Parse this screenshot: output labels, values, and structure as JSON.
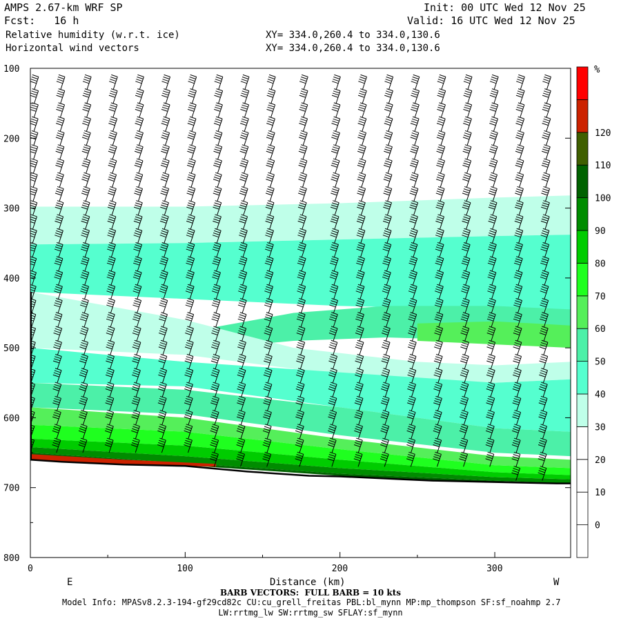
{
  "header": {
    "model": "AMPS 2.67-km WRF SP",
    "init": "Init: 00 UTC Wed 12 Nov 25",
    "fcst": "Fcst:   16 h",
    "valid": "Valid: 16 UTC Wed 12 Nov 25",
    "field1": "Relative humidity (w.r.t. ice)",
    "field2": "Horizontal wind vectors",
    "xy1": "XY= 334.0,260.4 to 334.0,130.6",
    "xy2": "XY= 334.0,260.4 to 334.0,130.6"
  },
  "footer": {
    "barb": "BARB VECTORS:  FULL BARB = 10 kts",
    "model_info": "Model Info: MPASv8.2.3-194-gf29cd82c CU:cu_grell_freitas PBL:bl_mynn MP:mp_thompson SF:sf_noahmp 2.7",
    "model_info2": "LW:rrtmg_lw SW:rrtmg_sw SFLAY:sf_mynn"
  },
  "chart_data": {
    "type": "heatmap",
    "xlabel": "Distance (km)",
    "ylabel": "",
    "xlim": [
      0,
      349
    ],
    "ylim": [
      800,
      100
    ],
    "x_ticks": [
      0,
      100,
      200,
      300
    ],
    "y_ticks": [
      100,
      200,
      300,
      400,
      500,
      600,
      700,
      800
    ],
    "x_end_labels": {
      "left": "E",
      "right": "W"
    },
    "colorbar": {
      "unit": "%",
      "tick_labels": [
        120,
        110,
        100,
        90,
        80,
        70,
        60,
        50,
        40,
        30,
        20,
        10,
        0
      ],
      "levels": [
        -10,
        0,
        10,
        20,
        30,
        40,
        50,
        60,
        70,
        80,
        90,
        100,
        110,
        120,
        130
      ],
      "colors": [
        "#ffffff",
        "#ffffff",
        "#ffffff",
        "#ffffff",
        "#bfffe9",
        "#55ffcf",
        "#4cf0a8",
        "#55ef5a",
        "#1fff1f",
        "#00cc00",
        "#008c00",
        "#006200",
        "#3f5f00",
        "#cc2200",
        "#ff0000"
      ]
    },
    "layers": [
      {
        "rh": 35,
        "color": "#bfffe9",
        "x": [
          0,
          100,
          200,
          300,
          349
        ],
        "top": [
          298,
          298,
          293,
          285,
          282
        ],
        "bottom": [
          352,
          350,
          345,
          340,
          338
        ]
      },
      {
        "rh": 45,
        "color": "#55ffcf",
        "x": [
          0,
          100,
          200,
          300,
          349
        ],
        "top": [
          352,
          350,
          345,
          340,
          338
        ],
        "bottom": [
          420,
          430,
          440,
          445,
          450
        ]
      },
      {
        "rh": 55,
        "color": "#4cf0a8",
        "x": [
          120,
          170,
          230,
          300,
          349
        ],
        "top": [
          470,
          450,
          440,
          440,
          445
        ],
        "bottom": [
          500,
          490,
          485,
          490,
          495
        ]
      },
      {
        "rh": 65,
        "color": "#55ef5a",
        "x": [
          250,
          300,
          349
        ],
        "top": [
          465,
          462,
          468
        ],
        "bottom": [
          490,
          495,
          500
        ]
      },
      {
        "rh": 35,
        "color": "#bfffe9",
        "x": [
          0,
          100,
          170,
          250,
          300,
          349
        ],
        "top": [
          420,
          460,
          500,
          520,
          525,
          520
        ],
        "bottom": [
          500,
          510,
          530,
          545,
          550,
          545
        ]
      },
      {
        "rh": 35,
        "color": "#bfffe9",
        "x": [
          170,
          220,
          280,
          349
        ],
        "top": [
          525,
          545,
          555,
          560
        ],
        "bottom": [
          535,
          560,
          580,
          590
        ]
      },
      {
        "rh": 45,
        "color": "#55ffcf",
        "x": [
          0,
          100,
          200,
          300,
          349
        ],
        "top": [
          500,
          520,
          535,
          550,
          545
        ],
        "bottom": [
          550,
          555,
          585,
          615,
          620
        ]
      },
      {
        "rh": 55,
        "color": "#4cf0a8",
        "x": [
          0,
          100,
          200,
          300,
          349
        ],
        "top": [
          550,
          560,
          585,
          615,
          620
        ],
        "bottom": [
          585,
          595,
          625,
          650,
          655
        ]
      },
      {
        "rh": 65,
        "color": "#55ef5a",
        "x": [
          0,
          100,
          200,
          300,
          349
        ],
        "top": [
          585,
          600,
          630,
          655,
          660
        ],
        "bottom": [
          610,
          620,
          645,
          668,
          672
        ]
      },
      {
        "rh": 75,
        "color": "#1fff1f",
        "x": [
          0,
          100,
          200,
          300,
          349
        ],
        "top": [
          610,
          620,
          645,
          668,
          672
        ],
        "bottom": [
          630,
          640,
          660,
          678,
          682
        ]
      },
      {
        "rh": 85,
        "color": "#00cc00",
        "x": [
          0,
          100,
          200,
          300,
          349
        ],
        "top": [
          630,
          640,
          660,
          678,
          682
        ],
        "bottom": [
          642,
          655,
          672,
          685,
          688
        ]
      },
      {
        "rh": 95,
        "color": "#008c00",
        "x": [
          0,
          100,
          200,
          300,
          349
        ],
        "top": [
          642,
          655,
          672,
          685,
          688
        ],
        "bottom": [
          650,
          665,
          680,
          690,
          694
        ]
      },
      {
        "rh": 105,
        "color": "#006200",
        "x": [
          0,
          100,
          200,
          300,
          349
        ],
        "top": [
          650,
          665,
          680,
          690,
          694
        ],
        "bottom": [
          655,
          668,
          683,
          693,
          697
        ]
      },
      {
        "rh": 115,
        "color": "#cc2200",
        "x": [
          0,
          60,
          120
        ],
        "top": [
          652,
          660,
          666
        ],
        "bottom": [
          660,
          667,
          670
        ]
      }
    ],
    "terrain": {
      "x": [
        0,
        20,
        40,
        60,
        80,
        100,
        120,
        140,
        160,
        180,
        200,
        220,
        240,
        260,
        280,
        300,
        320,
        340,
        349
      ],
      "pressure": [
        660,
        663,
        665,
        667,
        668,
        669,
        673,
        677,
        680,
        683,
        684,
        686,
        688,
        690,
        691,
        692,
        693,
        694,
        694
      ]
    },
    "barb_columns_x": [
      1,
      18,
      35,
      52,
      69,
      86,
      103,
      120,
      137,
      154,
      175,
      196,
      213,
      230,
      247,
      264,
      281,
      298,
      315,
      332
    ],
    "barb_levels": [
      130,
      150,
      170,
      190,
      210,
      230,
      250,
      270,
      290,
      310,
      330,
      350,
      370,
      390,
      410,
      430,
      450,
      470,
      490,
      510,
      530,
      550,
      570,
      590,
      610,
      630,
      650,
      670,
      690
    ],
    "barb_flag_count": 4
  }
}
